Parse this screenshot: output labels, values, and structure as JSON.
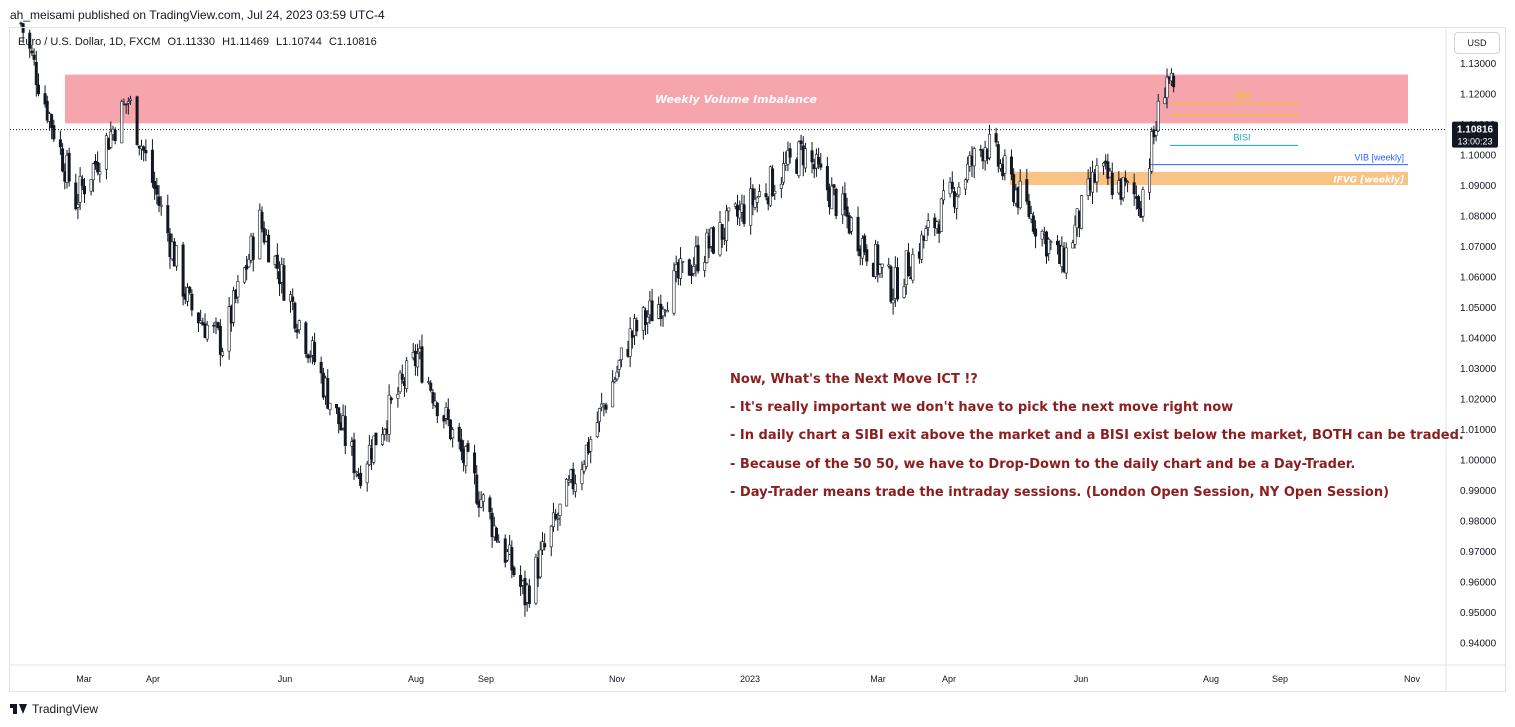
{
  "header": {
    "published_line": "ah_meisami published on TradingView.com, Jul 24, 2023 03:59 UTC-4"
  },
  "symbol": {
    "name": "Euro / U.S. Dollar, 1D, FXCM",
    "open": "O1.11330",
    "high": "H1.11469",
    "low": "L1.10744",
    "close": "C1.10816"
  },
  "currency_button": "USD",
  "last_price": {
    "value": "1.10816",
    "countdown": "13:00:23"
  },
  "notes": [
    "Now, What's the Next Move ICT !?",
    "- It's really important we don't have to pick the next move right now",
    "- In daily chart a SIBI exit above the market and a BISI exist below the market, BOTH can be traded.",
    "- Because of the 50 50, we have to Drop-Down to the daily chart and be a Day-Trader.",
    "- Day-Trader means trade the intraday sessions. (London Open Session, NY Open Session)"
  ],
  "footer": {
    "brand": "TradingView"
  },
  "colors": {
    "candle": "#131722",
    "zone_weekly": "#f7a0a8",
    "zone_ifvg": "#f9c07f",
    "sibi": "#f5c518",
    "bisi": "#17a2b8",
    "vib": "#2962ff",
    "note_text": "#8b1f1f"
  },
  "chart_data": {
    "type": "candlestick",
    "symbol": "EURUSD",
    "timeframe": "1D",
    "ylim": [
      0.935,
      1.1335
    ],
    "y_ticks": [
      1.13,
      1.12,
      1.11,
      1.1,
      1.09,
      1.08,
      1.07,
      1.06,
      1.05,
      1.04,
      1.03,
      1.02,
      1.01,
      1.0,
      0.99,
      0.98,
      0.97,
      0.96,
      0.95,
      0.94
    ],
    "y_tick_labels": [
      "1.13000",
      "1.12000",
      "1.11000",
      "1.10000",
      "1.09000",
      "1.08000",
      "1.07000",
      "1.06000",
      "1.05000",
      "1.04000",
      "1.03000",
      "1.02000",
      "1.01000",
      "1.00000",
      "0.99000",
      "0.98000",
      "0.97000",
      "0.96000",
      "0.95000",
      "0.94000"
    ],
    "x_ticks": [
      "Mar",
      "Apr",
      "Jun",
      "Aug",
      "Sep",
      "Nov",
      "2023",
      "Mar",
      "Apr",
      "Jun",
      "Aug",
      "Sep",
      "Nov"
    ],
    "price_path": [
      {
        "date": "2022-02-10",
        "close": 1.143
      },
      {
        "date": "2022-03-07",
        "close": 1.085
      },
      {
        "date": "2022-03-31",
        "close": 1.118
      },
      {
        "date": "2022-04-28",
        "close": 1.05
      },
      {
        "date": "2022-05-13",
        "close": 1.038
      },
      {
        "date": "2022-05-30",
        "close": 1.078
      },
      {
        "date": "2022-07-14",
        "close": 0.996
      },
      {
        "date": "2022-08-10",
        "close": 1.034
      },
      {
        "date": "2022-09-28",
        "close": 0.955
      },
      {
        "date": "2022-10-27",
        "close": 1.005
      },
      {
        "date": "2022-11-15",
        "close": 1.04
      },
      {
        "date": "2022-12-15",
        "close": 1.066
      },
      {
        "date": "2023-02-02",
        "close": 1.101
      },
      {
        "date": "2023-03-15",
        "close": 1.056
      },
      {
        "date": "2023-04-26",
        "close": 1.104
      },
      {
        "date": "2023-05-31",
        "close": 1.064
      },
      {
        "date": "2023-06-16",
        "close": 1.094
      },
      {
        "date": "2023-07-06",
        "close": 1.085
      },
      {
        "date": "2023-07-18",
        "close": 1.127
      },
      {
        "date": "2023-07-24",
        "close": 1.108
      }
    ],
    "last_close": 1.10816,
    "zones": [
      {
        "label": "Weekly Volume Imbalance",
        "from": 1.1102,
        "to": 1.1262
      },
      {
        "label": "IFVG [weekly]",
        "from": 1.09,
        "to": 1.0943
      }
    ],
    "levels": [
      {
        "label": "SIBI",
        "price": 1.1168
      },
      {
        "label": "BISI",
        "price": 1.103
      },
      {
        "label": "VIB [weekly]",
        "price": 1.0967
      }
    ]
  }
}
